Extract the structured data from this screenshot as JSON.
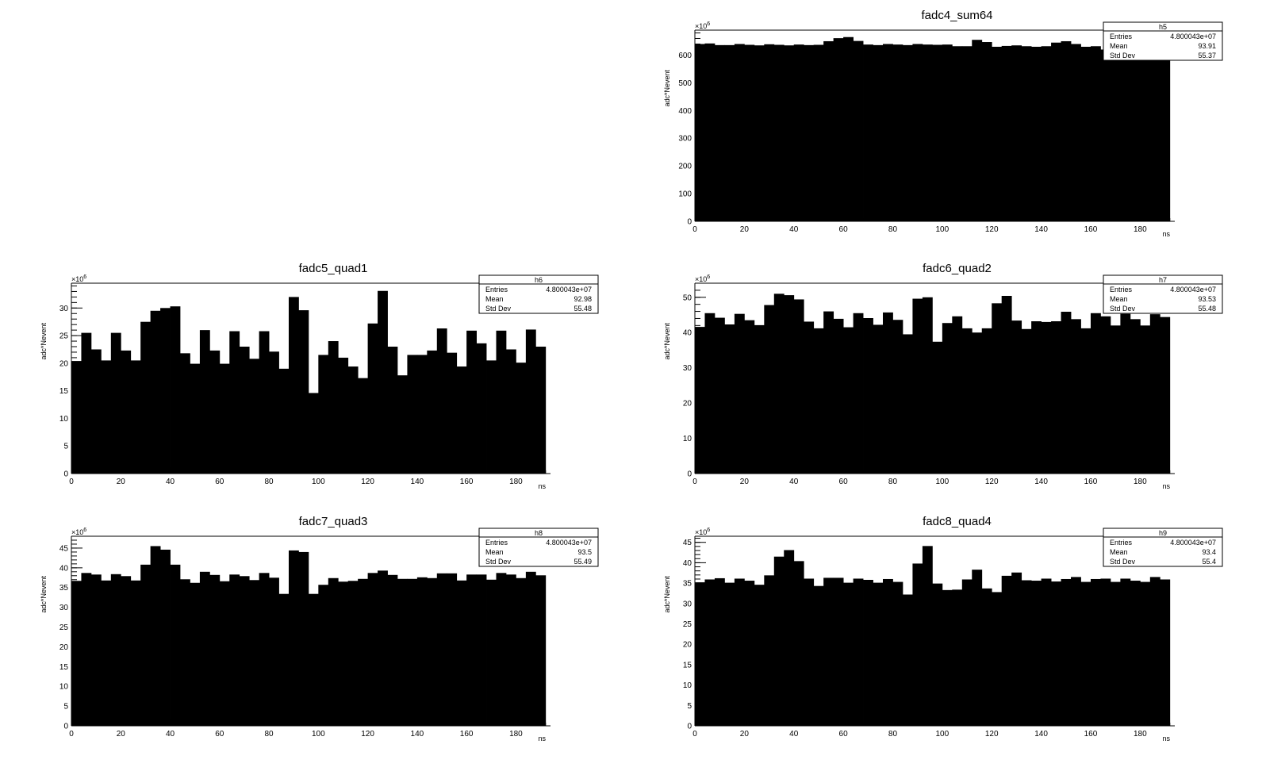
{
  "chart_data": [
    {
      "type": "bar",
      "title": "fadc4_sum64",
      "xlabel": "ns",
      "ylabel": "adc*Nevent",
      "exponent": "6",
      "xlim": [
        0,
        194
      ],
      "ylim": [
        0,
        690
      ],
      "bin_width": 4,
      "xticks": [
        0,
        20,
        40,
        60,
        80,
        100,
        120,
        140,
        160,
        180
      ],
      "yticks": [
        0,
        100,
        200,
        300,
        400,
        500,
        600
      ],
      "values": [
        640,
        642,
        636,
        636,
        640,
        637,
        635,
        639,
        637,
        635,
        638,
        636,
        637,
        650,
        661,
        665,
        651,
        638,
        636,
        640,
        638,
        636,
        640,
        638,
        637,
        638,
        632,
        632,
        655,
        647,
        630,
        633,
        635,
        632,
        630,
        632,
        645,
        650,
        640,
        630,
        632,
        620,
        620,
        620,
        620,
        620,
        620,
        620
      ],
      "stats": {
        "name": "h5",
        "entries_label": "Entries",
        "entries": "4.800043e+07",
        "mean_label": "Mean",
        "mean": "93.91",
        "std_label": "Std Dev",
        "std": "55.37"
      }
    },
    {
      "type": "bar",
      "title": "fadc5_quad1",
      "xlabel": "ns",
      "ylabel": "adc*Nevent",
      "exponent": "6",
      "xlim": [
        0,
        194
      ],
      "ylim": [
        0,
        34.5
      ],
      "bin_width": 4,
      "xticks": [
        0,
        20,
        40,
        60,
        80,
        100,
        120,
        140,
        160,
        180
      ],
      "yticks": [
        0,
        5,
        10,
        15,
        20,
        25,
        30
      ],
      "values": [
        20.4,
        25.5,
        22.5,
        20.5,
        25.5,
        22.3,
        20.5,
        27.5,
        29.5,
        30.0,
        30.3,
        21.8,
        19.9,
        26.0,
        22.3,
        19.9,
        25.8,
        23.0,
        20.8,
        25.8,
        22.1,
        19.0,
        32.0,
        29.6,
        14.6,
        21.5,
        24.0,
        21.0,
        19.4,
        17.3,
        27.2,
        33.1,
        23.0,
        17.8,
        21.5,
        21.5,
        22.3,
        26.3,
        21.9,
        19.4,
        25.9,
        23.6,
        20.5,
        25.9,
        22.5,
        20.1,
        26.1,
        23.0
      ],
      "stats": {
        "name": "h6",
        "entries_label": "Entries",
        "entries": "4.800043e+07",
        "mean_label": "Mean",
        "mean": "92.98",
        "std_label": "Std Dev",
        "std": "55.48"
      }
    },
    {
      "type": "bar",
      "title": "fadc6_quad2",
      "xlabel": "ns",
      "ylabel": "adc*Nevent",
      "exponent": "6",
      "xlim": [
        0,
        194
      ],
      "ylim": [
        0,
        54
      ],
      "bin_width": 4,
      "xticks": [
        0,
        20,
        40,
        60,
        80,
        100,
        120,
        140,
        160,
        180
      ],
      "yticks": [
        0,
        10,
        20,
        30,
        40,
        50
      ],
      "values": [
        41.6,
        45.5,
        44.2,
        42.3,
        45.3,
        43.5,
        42.1,
        47.8,
        51.0,
        50.6,
        49.4,
        43.1,
        41.2,
        46.0,
        43.9,
        41.5,
        45.5,
        44.1,
        42.2,
        45.7,
        43.6,
        39.5,
        49.6,
        50.0,
        37.4,
        42.7,
        44.6,
        41.2,
        40.0,
        41.2,
        48.3,
        50.4,
        43.4,
        41.0,
        43.2,
        43.0,
        43.2,
        45.9,
        43.8,
        41.2,
        45.5,
        44.6,
        42.0,
        45.3,
        43.8,
        42.0,
        45.2,
        44.4
      ],
      "stats": {
        "name": "h7",
        "entries_label": "Entries",
        "entries": "4.800043e+07",
        "mean_label": "Mean",
        "mean": "93.53",
        "std_label": "Std Dev",
        "std": "55.48"
      }
    },
    {
      "type": "bar",
      "title": "fadc7_quad3",
      "xlabel": "ns",
      "ylabel": "adc*Nevent",
      "exponent": "6",
      "xlim": [
        0,
        194
      ],
      "ylim": [
        0,
        48
      ],
      "bin_width": 4,
      "xticks": [
        0,
        20,
        40,
        60,
        80,
        100,
        120,
        140,
        160,
        180
      ],
      "yticks": [
        0,
        5,
        10,
        15,
        20,
        25,
        30,
        35,
        40,
        45
      ],
      "values": [
        36.7,
        38.7,
        38.3,
        36.8,
        38.4,
        37.9,
        36.8,
        40.8,
        45.5,
        44.6,
        40.8,
        37.1,
        36.2,
        39.0,
        38.2,
        36.6,
        38.3,
        37.9,
        36.9,
        38.7,
        37.5,
        33.4,
        44.4,
        44.0,
        33.4,
        35.7,
        37.4,
        36.5,
        36.7,
        37.2,
        38.7,
        39.3,
        38.2,
        37.2,
        37.2,
        37.6,
        37.4,
        38.6,
        38.6,
        36.8,
        38.3,
        38.3,
        37.0,
        38.7,
        38.3,
        37.4,
        39.0,
        38.1
      ],
      "stats": {
        "name": "h8",
        "entries_label": "Entries",
        "entries": "4.800043e+07",
        "mean_label": "Mean",
        "mean": "93.5",
        "std_label": "Std Dev",
        "std": "55.49"
      }
    },
    {
      "type": "bar",
      "title": "fadc8_quad4",
      "xlabel": "ns",
      "ylabel": "adc*Nevent",
      "exponent": "6",
      "xlim": [
        0,
        194
      ],
      "ylim": [
        0,
        46.5
      ],
      "bin_width": 4,
      "xticks": [
        0,
        20,
        40,
        60,
        80,
        100,
        120,
        140,
        160,
        180
      ],
      "yticks": [
        0,
        5,
        10,
        15,
        20,
        25,
        30,
        35,
        40,
        45
      ],
      "values": [
        35.2,
        35.9,
        36.2,
        35.1,
        36.1,
        35.6,
        34.6,
        36.9,
        41.5,
        43.1,
        40.4,
        36.1,
        34.3,
        36.3,
        36.3,
        35.1,
        36.1,
        35.8,
        35.1,
        36.0,
        35.3,
        32.2,
        39.8,
        44.1,
        34.9,
        33.3,
        33.4,
        35.9,
        38.3,
        33.7,
        32.8,
        36.8,
        37.6,
        35.7,
        35.6,
        36.1,
        35.4,
        36.0,
        36.5,
        35.3,
        36.0,
        36.1,
        35.3,
        36.1,
        35.6,
        35.3,
        36.5,
        35.9
      ],
      "stats": {
        "name": "h9",
        "entries_label": "Entries",
        "entries": "4.800043e+07",
        "mean_label": "Mean",
        "mean": "93.4",
        "std_label": "Std Dev",
        "std": "55.4"
      }
    }
  ]
}
